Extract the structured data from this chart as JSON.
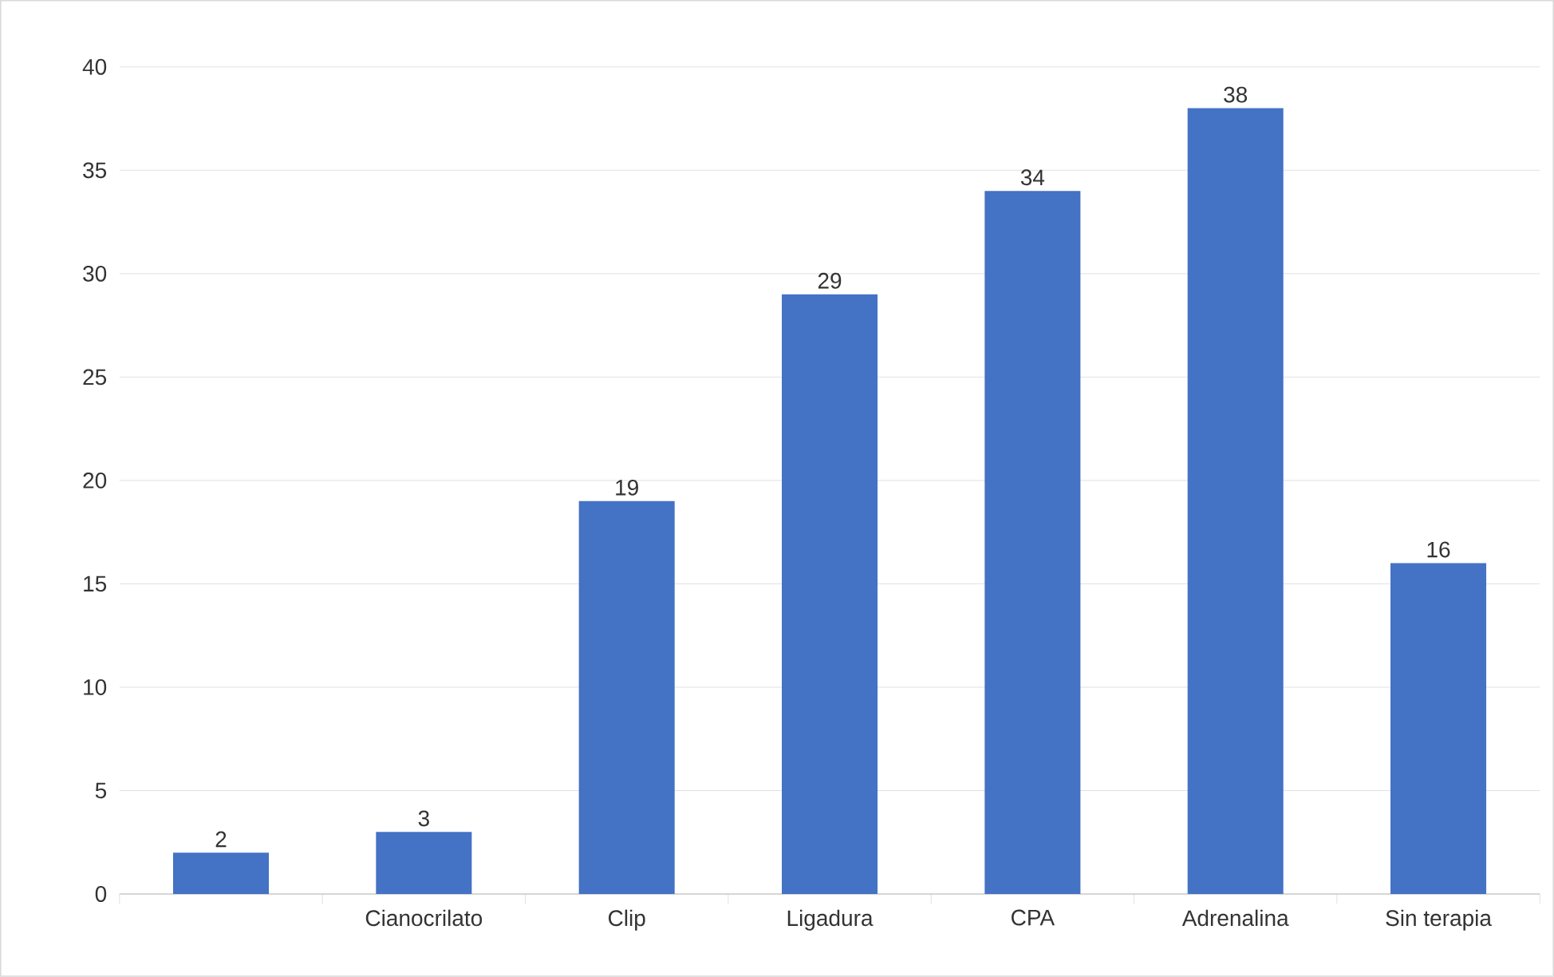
{
  "chart_data": {
    "type": "bar",
    "categories": [
      null,
      "Cianocrilato",
      "Clip",
      "Ligadura",
      "CPA",
      "Adrenalina",
      "Sin terapia"
    ],
    "values": [
      2,
      3,
      19,
      29,
      34,
      38,
      16
    ],
    "color": "#4472c4",
    "ylim": [
      0,
      40
    ],
    "yticks": [
      0,
      5,
      10,
      15,
      20,
      25,
      30,
      35,
      40
    ],
    "grid": "y",
    "data_labels": true
  }
}
